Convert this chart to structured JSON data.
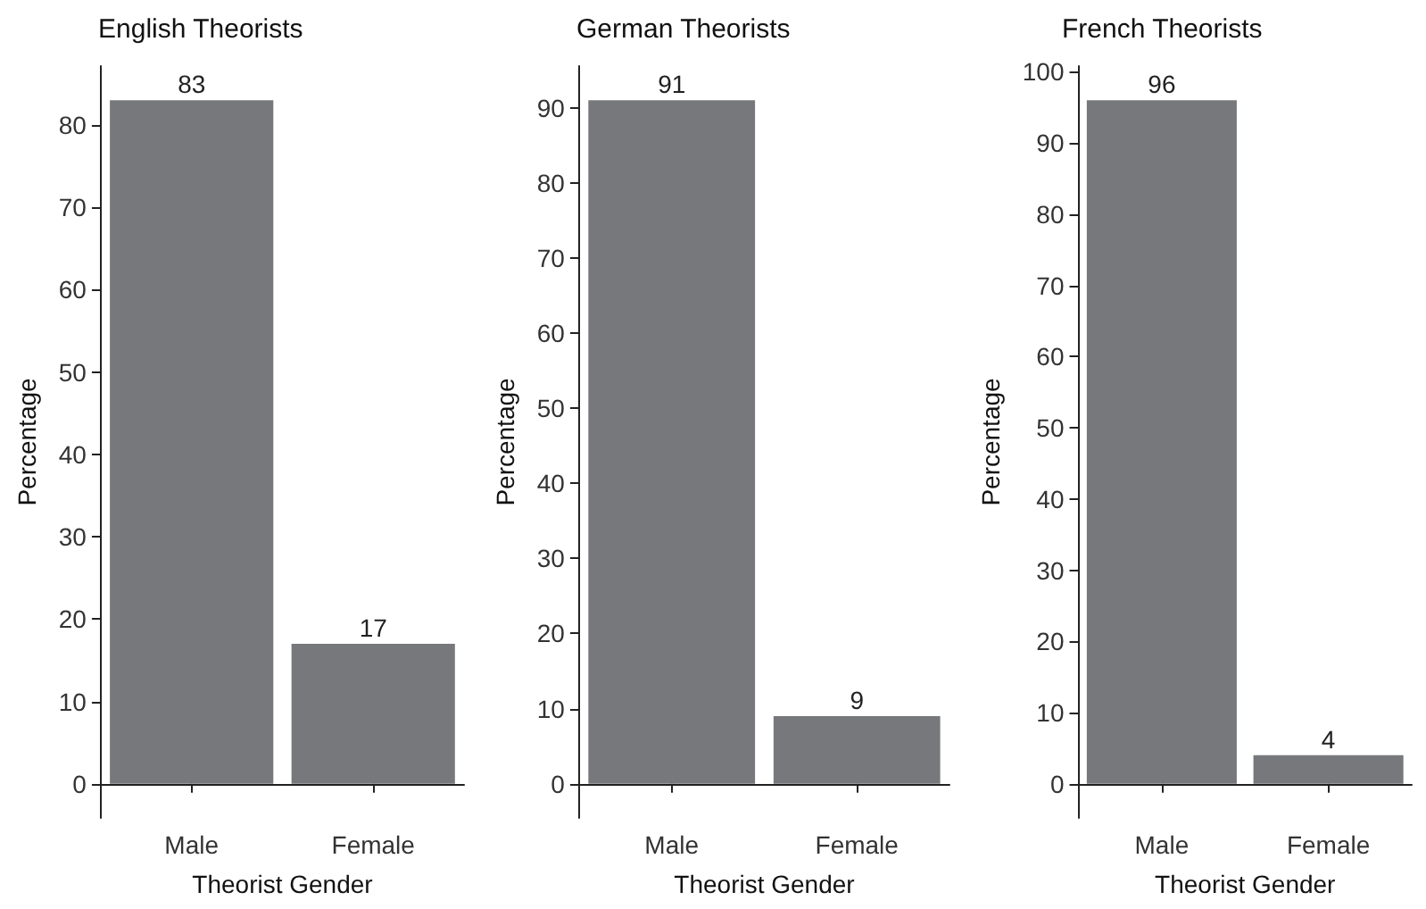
{
  "chart_data": [
    {
      "type": "bar",
      "title": "English Theorists",
      "xlabel": "Theorist Gender",
      "ylabel": "Percentage",
      "categories": [
        "Male",
        "Female"
      ],
      "values": [
        83,
        17
      ],
      "color": "#77787b",
      "ylim": [
        -4.15,
        87.15
      ],
      "yticks": [
        0,
        10,
        20,
        30,
        40,
        50,
        60,
        70,
        80
      ],
      "data_labels": true,
      "grid": false
    },
    {
      "type": "bar",
      "title": "German Theorists",
      "xlabel": "Theorist Gender",
      "ylabel": "Percentage",
      "categories": [
        "Male",
        "Female"
      ],
      "values": [
        91,
        9
      ],
      "color": "#77787b",
      "ylim": [
        -4.55,
        95.55
      ],
      "yticks": [
        0,
        10,
        20,
        30,
        40,
        50,
        60,
        70,
        80,
        90
      ],
      "data_labels": true,
      "grid": false
    },
    {
      "type": "bar",
      "title": "French Theorists",
      "xlabel": "Theorist Gender",
      "ylabel": "Percentage",
      "categories": [
        "Male",
        "Female"
      ],
      "values": [
        96,
        4
      ],
      "color": "#77787b",
      "ylim": [
        -4.8,
        100.8
      ],
      "yticks": [
        0,
        10,
        20,
        30,
        40,
        50,
        60,
        70,
        80,
        90,
        100
      ],
      "data_labels": true,
      "grid": false
    }
  ]
}
